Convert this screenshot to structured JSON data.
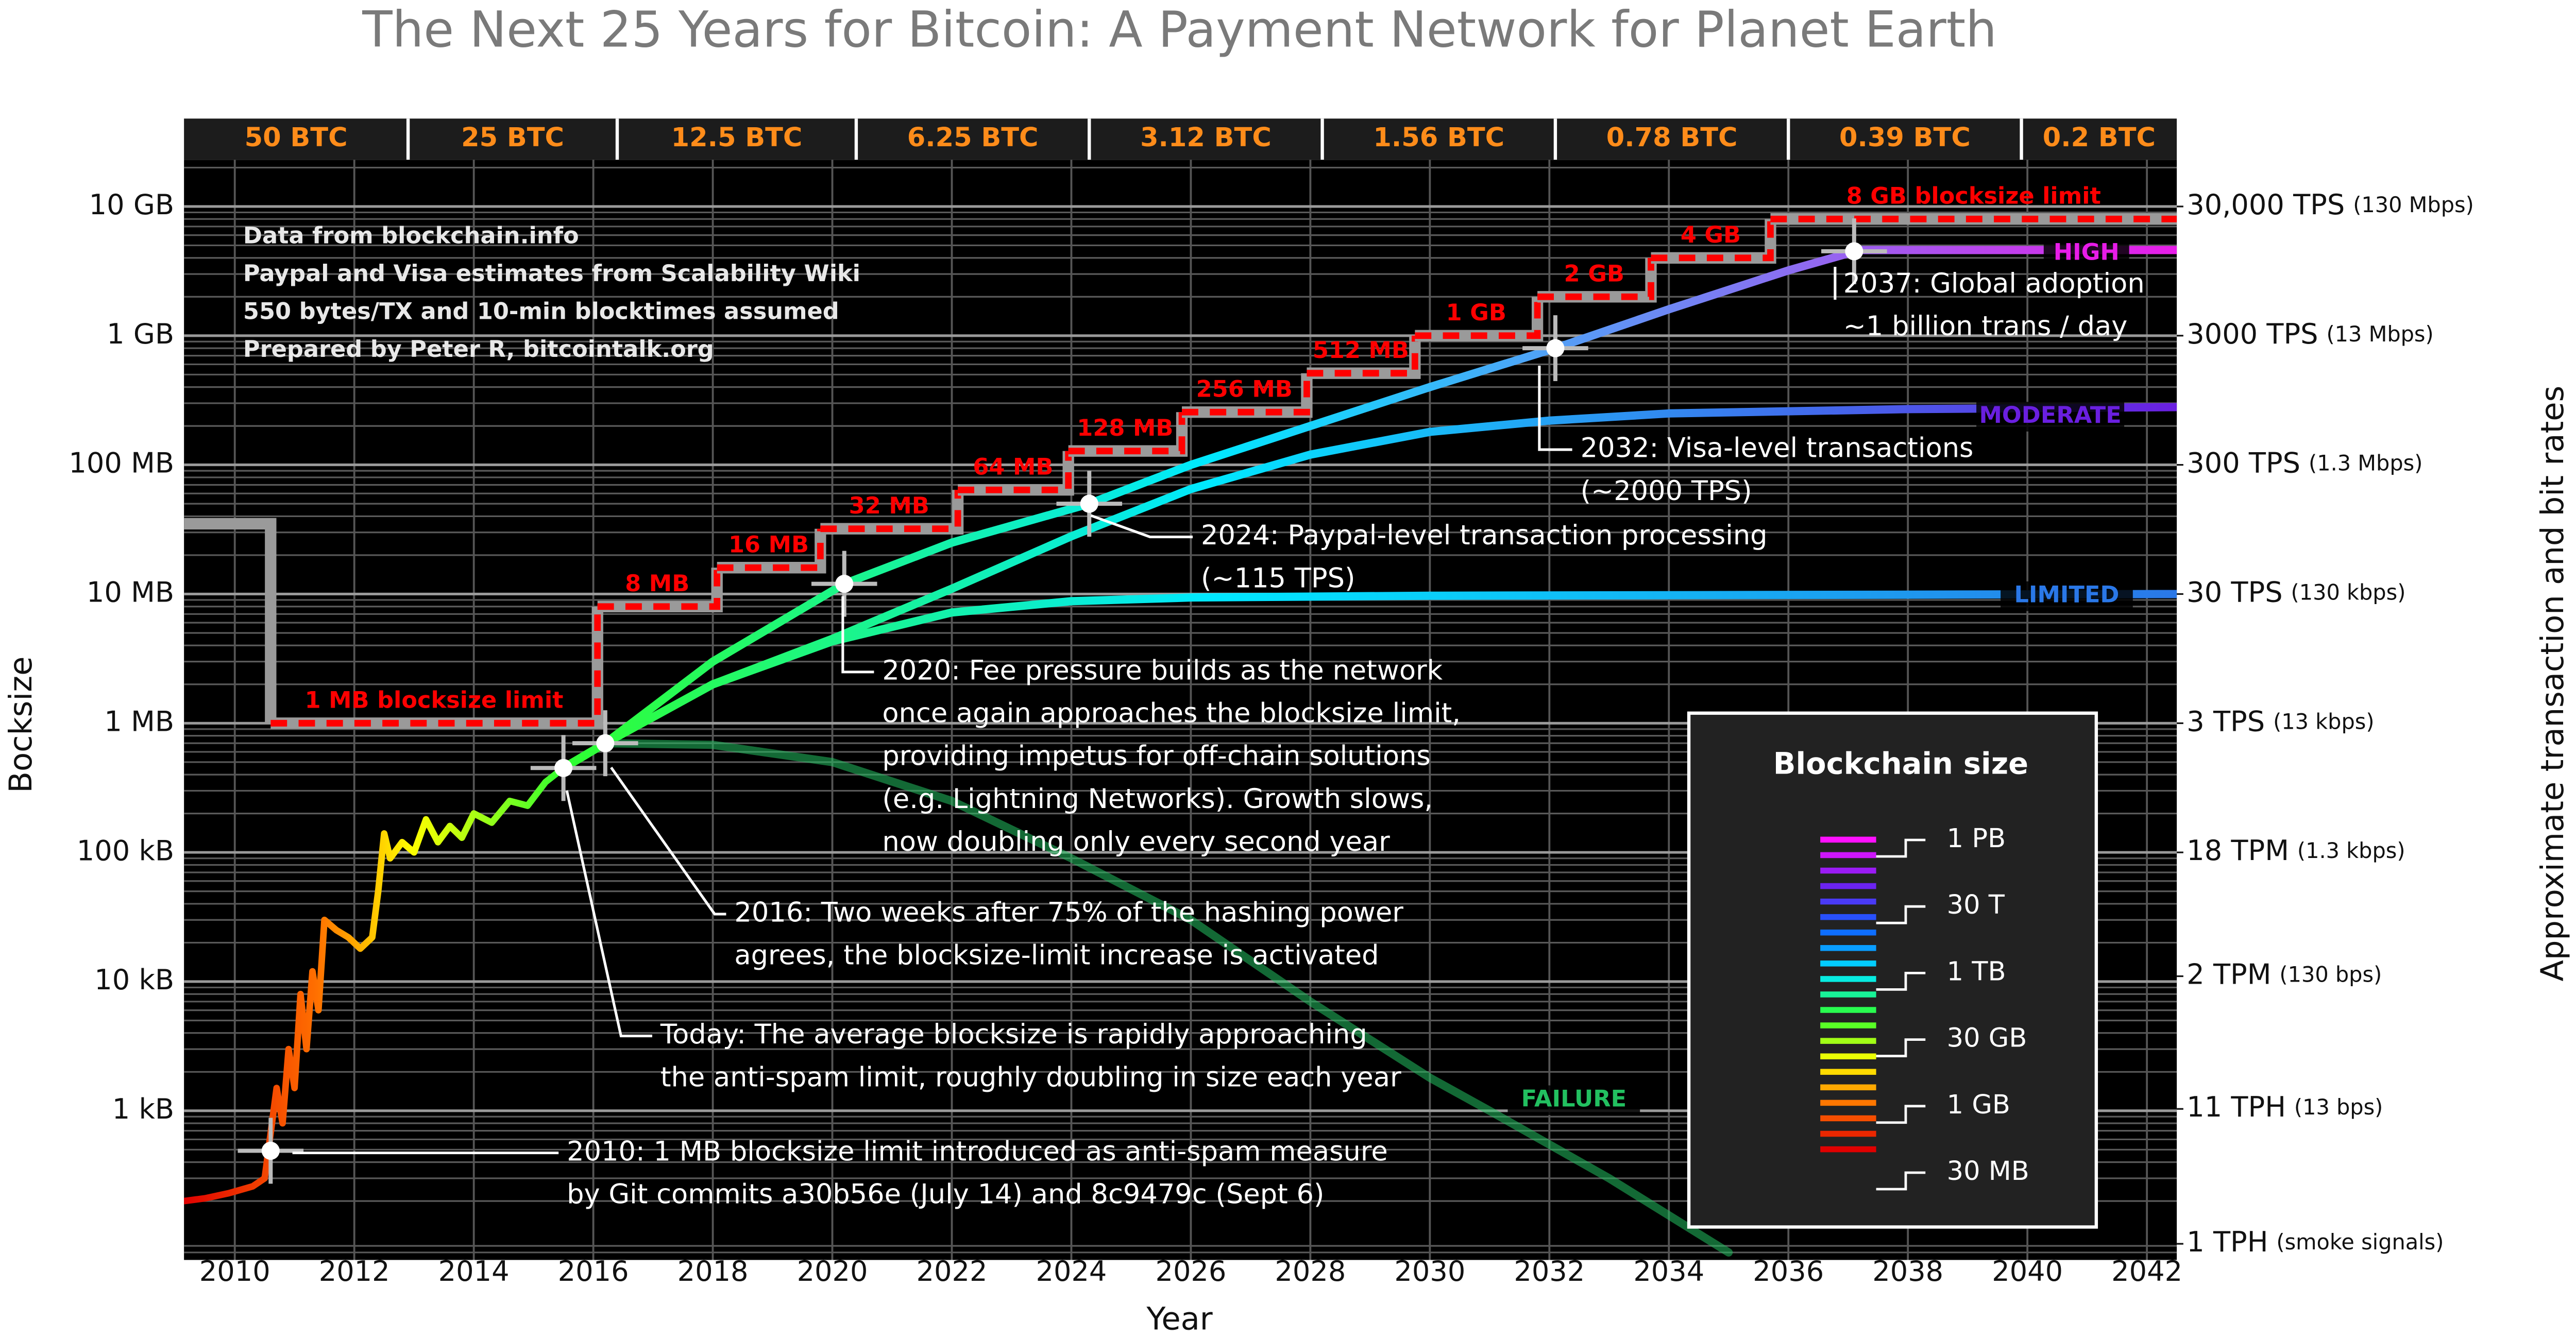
{
  "chart_data": {
    "type": "line",
    "title": "The Next 25 Years for Bitcoin: A Payment Network for Planet Earth",
    "xlabel": "Year",
    "ylabel": "Bocksize",
    "y2label": "Approximate transaction and bit rates",
    "xlim": [
      2009.15,
      2042.5
    ],
    "xticks": [
      2010,
      2012,
      2014,
      2016,
      2018,
      2020,
      2022,
      2024,
      2026,
      2028,
      2030,
      2032,
      2034,
      2036,
      2038,
      2040,
      2042
    ],
    "ylim": [
      70,
      23000000000
    ],
    "log_y": true,
    "grid": true,
    "yticks": [
      {
        "value": 1000,
        "label": "1 kB"
      },
      {
        "value": 10000,
        "label": "10 kB"
      },
      {
        "value": 100000,
        "label": "100 kB"
      },
      {
        "value": 1000000,
        "label": "1 MB"
      },
      {
        "value": 10000000,
        "label": "10 MB"
      },
      {
        "value": 100000000,
        "label": "100 MB"
      },
      {
        "value": 1000000000,
        "label": "1 GB"
      },
      {
        "value": 10000000000,
        "label": "10 GB"
      }
    ],
    "y2lim": [
      0.00021,
      69000
    ],
    "y2ticks": [
      {
        "value": 30000,
        "label": "30,000 TPS"
      },
      {
        "value": 3000,
        "label": "3000 TPS"
      },
      {
        "value": 300,
        "label": "300 TPS"
      },
      {
        "value": 30,
        "label": "30 TPS"
      },
      {
        "value": 3,
        "label": "3 TPS"
      },
      {
        "value": 0.3,
        "label": "18 TPM"
      },
      {
        "value": 0.033,
        "label": "2 TPM"
      },
      {
        "value": 0.0031,
        "label": "11 TPH"
      },
      {
        "value": 0.00028,
        "label": "1 TPH"
      }
    ],
    "y2tick_notes": [
      "(130 Mbps)",
      "(13 Mbps)",
      "(1.3 Mbps)",
      "(130 kbps)",
      "(13 kbps)",
      "(1.3 kbps)",
      "(130 bps)",
      "(13 bps)",
      "(smoke signals)"
    ],
    "notes": [
      "Data from blockchain.info",
      "Paypal and Visa estimates from Scalability Wiki",
      "550 bytes/TX and 10-min blocktimes assumed",
      "Prepared by Peter R, bitcointalk.org"
    ],
    "block_rewards": {
      "labels": [
        "50 BTC",
        "25 BTC",
        "12.5 BTC",
        "6.25 BTC",
        "3.12 BTC",
        "1.56 BTC",
        "0.78 BTC",
        "0.39 BTC",
        "0.2 BTC"
      ],
      "boundaries": [
        2012.9,
        2016.4,
        2020.4,
        2024.3,
        2028.2,
        2032.1,
        2036.0,
        2039.9
      ]
    },
    "colormap": [
      "#e00000",
      "#ff7000",
      "#ffff00",
      "#30ff30",
      "#00e8ff",
      "#1060ff",
      "#7020f0",
      "#ff10ff"
    ],
    "history": {
      "x": [
        2009.15,
        2009.5,
        2009.9,
        2010.3,
        2010.5,
        2010.7,
        2010.8,
        2010.9,
        2011.0,
        2011.1,
        2011.2,
        2011.3,
        2011.4,
        2011.5,
        2011.7,
        2011.9,
        2012.1,
        2012.3,
        2012.4,
        2012.5,
        2012.6,
        2012.8,
        2013.0,
        2013.2,
        2013.4,
        2013.6,
        2013.8,
        2014.0,
        2014.3,
        2014.6,
        2014.9,
        2015.2,
        2015.5
      ],
      "values": [
        200,
        210,
        230,
        260,
        300,
        1500,
        800,
        3000,
        1500,
        8000,
        3000,
        12000,
        6000,
        30000,
        25000,
        22000,
        18000,
        22000,
        50000,
        140000,
        90000,
        120000,
        100000,
        180000,
        120000,
        160000,
        130000,
        200000,
        170000,
        250000,
        230000,
        350000,
        450000
      ]
    },
    "blocksize_limit": {
      "color": "#ff0000",
      "x": [
        2009.15,
        2010.6,
        2016.07,
        2018.07,
        2019.8,
        2022.1,
        2023.95,
        2025.85,
        2027.94,
        2029.75,
        2031.8,
        2033.7,
        2035.7
      ],
      "values": [
        35000000,
        1000000,
        8000000,
        16000000,
        32000000,
        64000000,
        128000000,
        256000000,
        512000000,
        1000000000,
        2000000000,
        4000000000,
        8000000000
      ],
      "labels": [
        null,
        "1 MB blocksize limit",
        "8 MB",
        "16 MB",
        "32 MB",
        "64 MB",
        "128 MB",
        "256 MB",
        "512 MB",
        "1 GB",
        "2 GB",
        "4 GB",
        "8 GB blocksize limit"
      ]
    },
    "series": [
      {
        "name": "FAILURE",
        "color": "#22c060",
        "x": [
          2016.2,
          2018,
          2020,
          2022,
          2024,
          2026,
          2028,
          2030,
          2031,
          2033,
          2035
        ],
        "values": [
          700000,
          680000,
          500000,
          250000,
          90000,
          30000,
          7000,
          1800,
          1000,
          300,
          80
        ]
      },
      {
        "name": "LIMITED",
        "color": "#2a78e8",
        "x": [
          2015.5,
          2016.2,
          2018,
          2020,
          2022,
          2024,
          2026,
          2030,
          2042.5
        ],
        "values": [
          450000,
          700000,
          2000000,
          4300000,
          7200000,
          8800000,
          9400000,
          9700000,
          10000000
        ]
      },
      {
        "name": "MODERATE",
        "color": "#6a1fe0",
        "x": [
          2015.5,
          2016.2,
          2018,
          2020,
          2022,
          2024,
          2026,
          2028,
          2030,
          2032,
          2034,
          2038,
          2042.5
        ],
        "values": [
          450000,
          700000,
          2000000,
          4500000,
          11000000,
          28000000,
          65000000,
          120000000,
          180000000,
          220000000,
          250000000,
          270000000,
          280000000
        ]
      },
      {
        "name": "HIGH",
        "color": "#e81ce8",
        "x": [
          2015.5,
          2016.2,
          2018,
          2020.2,
          2022,
          2024.3,
          2026,
          2028,
          2030,
          2032.1,
          2034,
          2036,
          2037.2,
          2042.5
        ],
        "values": [
          450000,
          700000,
          3000000,
          12000000,
          25000000,
          50000000,
          100000000,
          200000000,
          400000000,
          800000000,
          1600000000,
          3200000000,
          4600000000,
          4600000000
        ]
      }
    ],
    "annotations": [
      {
        "x": 2010.6,
        "y": 490,
        "lines": [
          "2010: 1 MB blocksize limit introduced as anti-spam measure",
          "by Git commits a30b56e (July 14) and 8c9479c (Sept 6)"
        ]
      },
      {
        "x": 2015.5,
        "y": 450000,
        "lines": [
          "Today: The average blocksize is rapidly approaching",
          "the anti-spam limit, roughly doubling in size each year"
        ]
      },
      {
        "x": 2016.2,
        "y": 700000,
        "lines": [
          "2016: Two weeks after 75% of the hashing power",
          "agrees, the blocksize-limit increase is activated"
        ]
      },
      {
        "x": 2020.2,
        "y": 12000000,
        "lines": [
          "2020: Fee pressure builds as the network",
          "once again approaches the blocksize limit,",
          "providing impetus for off-chain solutions",
          "(e.g. Lightning Networks). Growth slows,",
          "now doubling only every second year"
        ]
      },
      {
        "x": 2024.3,
        "y": 50000000,
        "lines": [
          "2024: Paypal-level transaction processing",
          "(~115 TPS)"
        ]
      },
      {
        "x": 2032.1,
        "y": 800000000,
        "lines": [
          "2032: Visa-level transactions",
          "(~2000 TPS)"
        ]
      },
      {
        "x": 2037.1,
        "y": 4500000000,
        "lines": [
          "2037: Global adoption",
          "~1 billion trans / day"
        ]
      }
    ],
    "colorbar": {
      "title": "Blockchain size",
      "labels": [
        "1 PB",
        "30 T",
        "1 TB",
        "30 GB",
        "1 GB",
        "30 MB"
      ]
    }
  }
}
